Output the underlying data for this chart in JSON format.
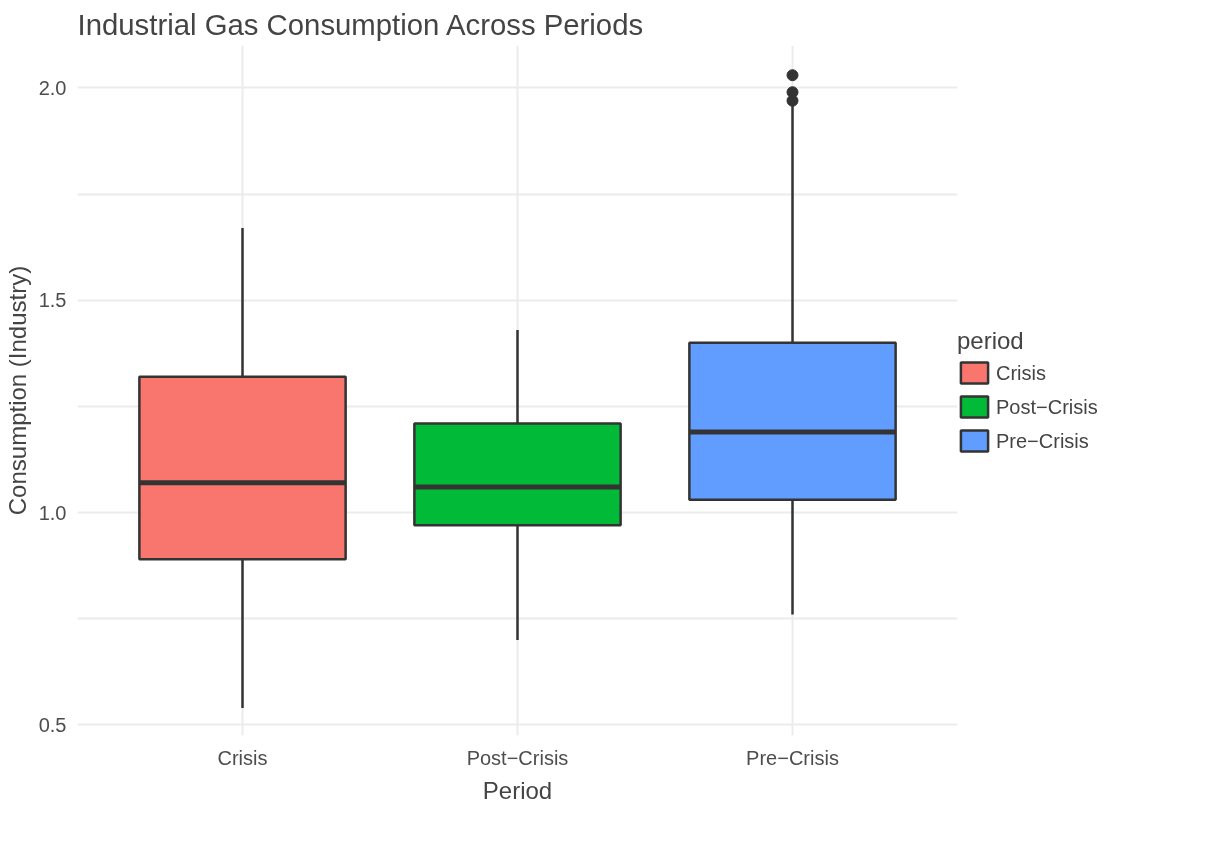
{
  "chart_data": {
    "type": "box",
    "title": "Industrial Gas Consumption Across Periods",
    "xlabel": "Period",
    "ylabel": "Consumption (Industry)",
    "legend_title": "period",
    "categories": [
      "Crisis",
      "Post−Crisis",
      "Pre−Crisis"
    ],
    "series": [
      {
        "name": "Crisis",
        "color": "#f8766d",
        "boxes": [
          {
            "low": 0.54,
            "q1": 0.89,
            "median": 1.07,
            "q3": 1.32,
            "high": 1.67
          },
          null,
          null
        ]
      },
      {
        "name": "Post−Crisis",
        "color": "#00ba38",
        "boxes": [
          null,
          {
            "low": 0.7,
            "q1": 0.97,
            "median": 1.06,
            "q3": 1.21,
            "high": 1.43
          },
          null
        ]
      },
      {
        "name": "Pre−Crisis",
        "color": "#619cff",
        "boxes": [
          null,
          null,
          {
            "low": 0.76,
            "q1": 1.03,
            "median": 1.19,
            "q3": 1.4,
            "high": 1.96,
            "outliers": [
              1.97,
              1.99,
              2.03
            ]
          }
        ]
      }
    ],
    "ylim": [
      0.475,
      2.1
    ],
    "yticks": [
      0.5,
      {
        "value": 0.75,
        "label": null
      },
      {
        "value": 1.0,
        "label": "1.0"
      },
      {
        "value": 1.25,
        "label": null
      },
      1.5,
      {
        "value": 1.75,
        "label": null
      },
      {
        "value": 2.0,
        "label": "2.0"
      }
    ],
    "grid": true,
    "legend": "right"
  }
}
